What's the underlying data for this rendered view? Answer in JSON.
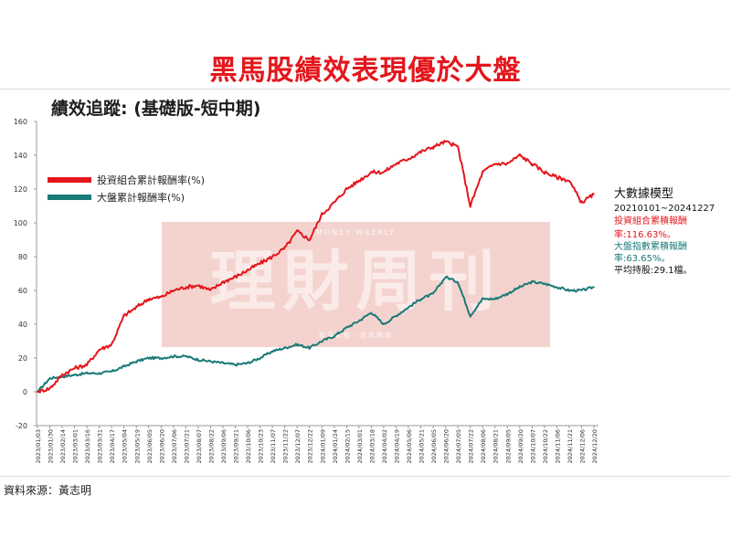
{
  "header": {
    "title": "黑馬股績效表現優於大盤"
  },
  "chart_data": {
    "type": "line",
    "title": "績效追蹤: (基礎版-短中期)",
    "ylim": [
      -20,
      160
    ],
    "yticks": [
      -20,
      0,
      20,
      40,
      60,
      80,
      100,
      120,
      140,
      160
    ],
    "grid": false,
    "legend_position": "top-left",
    "x": [
      "2023/01/03",
      "2023/01/30",
      "2023/02/14",
      "2023/03/01",
      "2023/03/16",
      "2023/03/31",
      "2023/04/17",
      "2023/05/04",
      "2023/05/19",
      "2023/06/05",
      "2023/06/20",
      "2023/07/06",
      "2023/07/21",
      "2023/08/07",
      "2023/08/22",
      "2023/09/06",
      "2023/09/21",
      "2023/10/06",
      "2023/10/23",
      "2023/11/07",
      "2023/11/22",
      "2023/12/07",
      "2023/12/22",
      "2024/01/09",
      "2024/01/24",
      "2024/02/15",
      "2024/03/01",
      "2024/03/18",
      "2024/04/02",
      "2024/04/19",
      "2024/05/06",
      "2024/05/21",
      "2024/06/05",
      "2024/06/20",
      "2024/07/05",
      "2024/07/22",
      "2024/08/06",
      "2024/08/21",
      "2024/09/05",
      "2024/09/20",
      "2024/10/07",
      "2024/10/22",
      "2024/11/06",
      "2024/11/21",
      "2024/12/06",
      "2024/12/20"
    ],
    "xtick_labels": [
      "2023/01/03",
      "2023/01/30",
      "2023/02/14",
      "2023/03/01",
      "2023/03/16",
      "2023/03/31",
      "2023/04/17",
      "2023/05/04",
      "2023/05/19",
      "2023/06/05",
      "2023/06/20",
      "2023/07/06",
      "2023/07/21",
      "2023/08/07",
      "2023/08/22",
      "2023/09/06",
      "2023/09/21",
      "2023/10/06",
      "2023/10/23",
      "2023/11/07",
      "2023/11/22",
      "2023/12/07",
      "2023/12/22",
      "2024/01/09",
      "2024/01/24",
      "2024/02/15",
      "2024/03/01",
      "2024/03/18",
      "2024/04/02",
      "2024/04/19",
      "2024/05/06",
      "2024/05/21",
      "2024/06/05",
      "2024/06/20",
      "2024/07/05",
      "2024/07/22",
      "2024/08/06",
      "2024/08/21",
      "2024/09/05",
      "2024/09/20",
      "2024/10/07",
      "2024/10/22",
      "2024/11/06",
      "2024/11/21",
      "2024/12/06",
      "2024/12/20"
    ],
    "series": [
      {
        "name": "投資組合累計報酬率(%)",
        "color": "#e4161c",
        "values": [
          0,
          2,
          10,
          14,
          16,
          25,
          28,
          45,
          50,
          55,
          56,
          60,
          62,
          63,
          60,
          65,
          68,
          72,
          76,
          80,
          85,
          95,
          90,
          105,
          112,
          120,
          125,
          130,
          130,
          135,
          138,
          142,
          145,
          148,
          145,
          110,
          130,
          135,
          135,
          140,
          135,
          130,
          127,
          125,
          112,
          117
        ]
      },
      {
        "name": "大盤累計報酬率(%)",
        "color": "#1a7a78",
        "values": [
          0,
          8,
          9,
          10,
          11,
          11,
          12,
          15,
          18,
          20,
          20,
          21,
          21,
          19,
          18,
          17,
          16,
          17,
          20,
          24,
          26,
          28,
          26,
          30,
          33,
          38,
          42,
          47,
          40,
          45,
          50,
          55,
          58,
          68,
          65,
          45,
          55,
          55,
          58,
          62,
          65,
          64,
          62,
          60,
          60,
          62
        ]
      }
    ]
  },
  "side_panel": {
    "heading": "大數據模型",
    "range": "20210101~20241227",
    "portfolio_line1": "投資組合累積報酬",
    "portfolio_line2": "率:116.63%。",
    "benchmark_line1": "大盤指數累積報酬",
    "benchmark_line2": "率:63.65%。",
    "holdings": "平均持股:29.1檔。"
  },
  "watermark": {
    "main": "理財周刊",
    "sub": "MONEY WEEKLY",
    "foot": "智富起點・由此開始"
  },
  "source": "資料來源：黃志明"
}
